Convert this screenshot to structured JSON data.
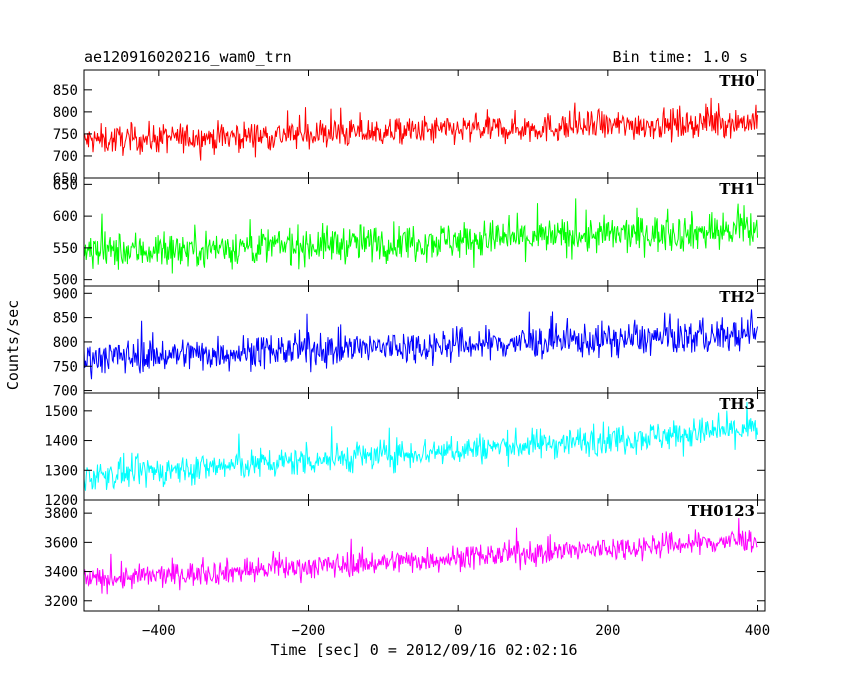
{
  "chart_data": {
    "type": "line",
    "title": "ae120916020216_wam0_trn",
    "subtitle": "Bin time: 1.0 s",
    "xlabel": "Time [sec] 0 = 2012/09/16 02:02:16",
    "ylabel": "Counts/sec",
    "xlim": [
      -500,
      410
    ],
    "xticks": [
      -400,
      -200,
      0,
      200,
      400
    ],
    "grid": false,
    "panels": [
      {
        "name": "TH0",
        "color": "#ff0000",
        "ylim": [
          650,
          895
        ],
        "yticks": [
          650,
          700,
          750,
          800,
          850
        ],
        "trend_start": 735,
        "trend_end": 778,
        "amplitude": 32
      },
      {
        "name": "TH1",
        "color": "#00ff00",
        "ylim": [
          490,
          660
        ],
        "yticks": [
          500,
          550,
          600,
          650
        ],
        "trend_start": 543,
        "trend_end": 578,
        "amplitude": 28
      },
      {
        "name": "TH2",
        "color": "#0000ff",
        "ylim": [
          695,
          915
        ],
        "yticks": [
          700,
          750,
          800,
          850,
          900
        ],
        "trend_start": 768,
        "trend_end": 815,
        "amplitude": 33
      },
      {
        "name": "TH3",
        "color": "#00ffff",
        "ylim": [
          1200,
          1560
        ],
        "yticks": [
          1200,
          1300,
          1400,
          1500
        ],
        "trend_start": 1280,
        "trend_end": 1440,
        "amplitude": 48
      },
      {
        "name": "TH0123",
        "color": "#ff00ff",
        "ylim": [
          3130,
          3890
        ],
        "yticks": [
          3200,
          3400,
          3600,
          3800
        ],
        "trend_start": 3340,
        "trend_end": 3620,
        "amplitude": 80
      }
    ]
  }
}
